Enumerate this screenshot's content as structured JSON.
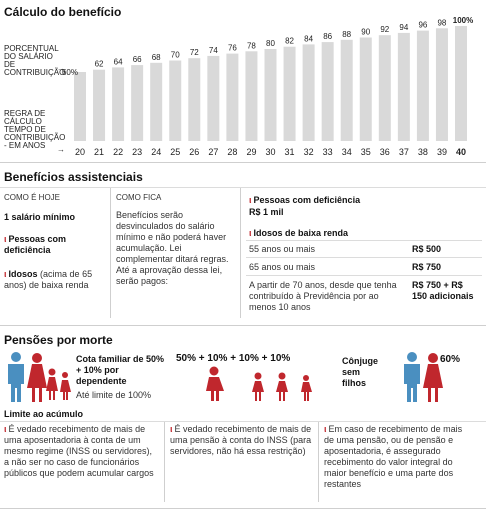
{
  "section1": {
    "title": "Cálculo do benefício",
    "label_percentual": "PORCENTUAL DO SALÁRIO DE CONTRIBUIÇÃO",
    "label_regra": "REGRA DE CÁLCULO TEMPO DE CONTRIBUIÇÃO - EM ANOS"
  },
  "chart_data": {
    "type": "bar",
    "categories": [
      "20",
      "21",
      "22",
      "23",
      "24",
      "25",
      "26",
      "27",
      "28",
      "29",
      "30",
      "31",
      "32",
      "33",
      "34",
      "35",
      "36",
      "37",
      "38",
      "39",
      "40"
    ],
    "values": [
      60,
      62,
      64,
      66,
      68,
      70,
      72,
      74,
      76,
      78,
      80,
      82,
      84,
      86,
      88,
      90,
      92,
      94,
      96,
      98,
      100
    ],
    "value_labels": [
      "60%",
      "62",
      "64",
      "66",
      "68",
      "70",
      "72",
      "74",
      "76",
      "78",
      "80",
      "82",
      "84",
      "86",
      "88",
      "90",
      "92",
      "94",
      "96",
      "98",
      "100%"
    ],
    "ylim": [
      0,
      100
    ],
    "colors": {
      "bar": "#d9d9d9",
      "last_bar": "#d9d9d9"
    }
  },
  "section2": {
    "title": "Benefícios assistenciais",
    "col1": {
      "header": "COMO É HOJE",
      "minimo": "1 salário mínimo",
      "pessoas": "Pessoas com deficiência",
      "idosos_bold": "Idosos",
      "idosos_rest": "(acima de 65 anos) de baixa renda"
    },
    "col2": {
      "header": "COMO FICA",
      "text": "Benefícios serão desvinculados do salário mínimo e não poderá haver acumulação. Lei complementar ditará regras. Até a aprovação dessa lei, serão pagos:"
    },
    "col3": {
      "pessoas": "Pessoas com deficiência",
      "pessoas_val": "R$ 1 mil",
      "idosos_title": "Idosos de baixa renda",
      "rows": [
        {
          "label": "55 anos ou mais",
          "value": "R$ 500"
        },
        {
          "label": "65 anos ou mais",
          "value": "R$ 750"
        },
        {
          "label": "A partir de 70 anos, desde que tenha contribuído à Previdência por ao menos 10 anos",
          "value": "R$ 750 + R$ 150 adicionais"
        }
      ]
    }
  },
  "section3": {
    "title": "Pensões por morte",
    "cota": "Cota familiar de 50% + 10% por dependente",
    "limite_text": "Até limite de 100%",
    "formula": [
      "50%",
      "+",
      "10%",
      "+",
      "10%",
      "+",
      "10%"
    ],
    "conjuge": "Cônjuge sem filhos",
    "conjuge_pct": "60%",
    "colors": {
      "male": "#4a8fc0",
      "female": "#c0272d"
    }
  },
  "section4": {
    "title": "Limite ao acúmulo",
    "items": [
      "É vedado recebimento de mais de uma aposentadoria à conta de um mesmo regime (INSS ou servidores), a não ser no caso de funcionários públicos que podem acumular cargos",
      "É vedado recebimento de mais de uma pensão à conta do INSS (para servidores, não há essa restrição)",
      "Em caso de recebimento de mais de uma pensão, ou de pensão e aposentadoria, é assegurado recebimento do valor integral do maior benefício e uma parte dos restantes"
    ]
  }
}
